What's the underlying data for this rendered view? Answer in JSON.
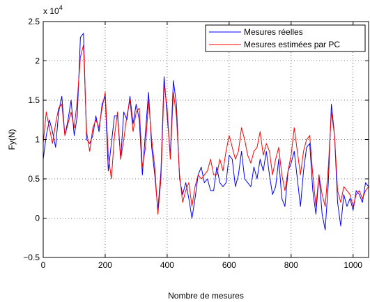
{
  "chart_data": {
    "type": "line",
    "title": "",
    "xlabel": "Nombre de mesures",
    "ylabel": "Fy(N)",
    "exponent_label": "x 10",
    "exponent_power": "4",
    "xlim": [
      0,
      1050
    ],
    "ylim": [
      -0.5,
      2.5
    ],
    "y_scale_factor": 10000,
    "grid": true,
    "legend_position": "top-right",
    "x_ticks": [
      0,
      200,
      400,
      600,
      800,
      1000
    ],
    "x_tick_labels": [
      "0",
      "200",
      "400",
      "600",
      "800",
      "1000"
    ],
    "y_ticks": [
      -0.5,
      0,
      0.5,
      1,
      1.5,
      2,
      2.5
    ],
    "y_tick_labels": [
      "−0.5",
      "0",
      "0.5",
      "1",
      "1.5",
      "2",
      "2.5"
    ],
    "series": [
      {
        "name": "Mesures réelles",
        "color": "#0000ff",
        "x": [
          0,
          10,
          20,
          30,
          40,
          50,
          60,
          70,
          80,
          90,
          100,
          110,
          120,
          130,
          140,
          150,
          160,
          170,
          180,
          190,
          200,
          210,
          220,
          230,
          240,
          250,
          260,
          270,
          280,
          290,
          300,
          310,
          320,
          330,
          340,
          350,
          360,
          370,
          380,
          390,
          400,
          410,
          420,
          430,
          440,
          450,
          460,
          470,
          480,
          490,
          500,
          510,
          520,
          530,
          540,
          550,
          560,
          570,
          580,
          590,
          600,
          610,
          620,
          630,
          640,
          650,
          660,
          670,
          680,
          690,
          700,
          710,
          720,
          730,
          740,
          750,
          760,
          770,
          780,
          790,
          800,
          810,
          820,
          830,
          840,
          850,
          860,
          870,
          880,
          890,
          900,
          910,
          920,
          930,
          940,
          950,
          960,
          970,
          980,
          990,
          1000,
          1010,
          1020,
          1030,
          1040,
          1050
        ],
        "y": [
          0.75,
          1.05,
          1.25,
          1.1,
          0.9,
          1.35,
          1.55,
          1.05,
          1.25,
          1.5,
          1.05,
          1.3,
          2.3,
          2.35,
          1.0,
          0.95,
          1.05,
          1.3,
          1.1,
          1.45,
          1.55,
          0.6,
          0.95,
          1.3,
          1.3,
          0.75,
          1.35,
          1.25,
          1.55,
          1.2,
          1.45,
          1.25,
          0.55,
          1.1,
          1.6,
          0.9,
          0.55,
          0.1,
          0.6,
          1.8,
          1.3,
          0.8,
          1.75,
          1.45,
          0.5,
          0.3,
          0.45,
          0.25,
          0.0,
          0.25,
          0.55,
          0.65,
          0.45,
          0.5,
          0.35,
          0.35,
          0.65,
          0.45,
          0.4,
          0.45,
          0.8,
          0.75,
          0.4,
          0.55,
          0.85,
          0.5,
          0.45,
          0.4,
          0.65,
          0.5,
          0.75,
          0.6,
          0.85,
          0.55,
          0.3,
          0.4,
          0.75,
          0.25,
          0.15,
          0.6,
          0.7,
          0.85,
          0.5,
          0.15,
          0.6,
          0.9,
          0.95,
          0.35,
          0.05,
          0.55,
          0.05,
          -0.15,
          0.45,
          1.45,
          1.05,
          0.2,
          -0.1,
          0.3,
          0.15,
          0.25,
          0.1,
          0.35,
          0.3,
          0.2,
          0.45,
          0.4
        ]
      },
      {
        "name": "Mesures estimées par PC",
        "color": "#ff0000",
        "x": [
          0,
          10,
          20,
          30,
          40,
          50,
          60,
          70,
          80,
          90,
          100,
          110,
          120,
          130,
          140,
          150,
          160,
          170,
          180,
          190,
          200,
          210,
          220,
          230,
          240,
          250,
          260,
          270,
          280,
          290,
          300,
          310,
          320,
          330,
          340,
          350,
          360,
          370,
          380,
          390,
          400,
          410,
          420,
          430,
          440,
          450,
          460,
          470,
          480,
          490,
          500,
          510,
          520,
          530,
          540,
          550,
          560,
          570,
          580,
          590,
          600,
          610,
          620,
          630,
          640,
          650,
          660,
          670,
          680,
          690,
          700,
          710,
          720,
          730,
          740,
          750,
          760,
          770,
          780,
          790,
          800,
          810,
          820,
          830,
          840,
          850,
          860,
          870,
          880,
          890,
          900,
          910,
          920,
          930,
          940,
          950,
          960,
          970,
          980,
          990,
          1000,
          1010,
          1020,
          1030,
          1040,
          1050
        ],
        "y": [
          0.95,
          1.35,
          1.15,
          0.95,
          1.2,
          1.4,
          1.45,
          1.05,
          1.2,
          1.35,
          1.15,
          1.5,
          2.05,
          2.2,
          1.1,
          0.85,
          1.15,
          1.25,
          1.15,
          1.4,
          1.6,
          0.8,
          0.5,
          1.05,
          1.35,
          0.75,
          1.0,
          1.3,
          1.5,
          1.1,
          1.35,
          1.4,
          0.65,
          0.9,
          1.5,
          1.0,
          0.65,
          0.05,
          0.5,
          1.7,
          1.4,
          0.75,
          1.6,
          1.3,
          0.55,
          0.2,
          0.35,
          0.45,
          0.15,
          0.4,
          0.55,
          0.5,
          0.55,
          0.6,
          0.75,
          0.55,
          0.55,
          0.75,
          0.6,
          0.85,
          1.05,
          0.9,
          0.75,
          0.85,
          1.15,
          1.0,
          0.8,
          0.7,
          0.85,
          0.9,
          1.1,
          0.8,
          0.95,
          0.85,
          0.55,
          0.75,
          0.9,
          0.55,
          0.35,
          0.6,
          0.8,
          1.15,
          0.85,
          0.55,
          0.85,
          1.0,
          1.05,
          0.55,
          0.15,
          0.55,
          0.3,
          0.15,
          0.65,
          1.35,
          1.05,
          0.35,
          0.2,
          0.4,
          0.35,
          0.3,
          0.15,
          0.3,
          0.35,
          0.25,
          0.35,
          0.4
        ]
      }
    ]
  }
}
